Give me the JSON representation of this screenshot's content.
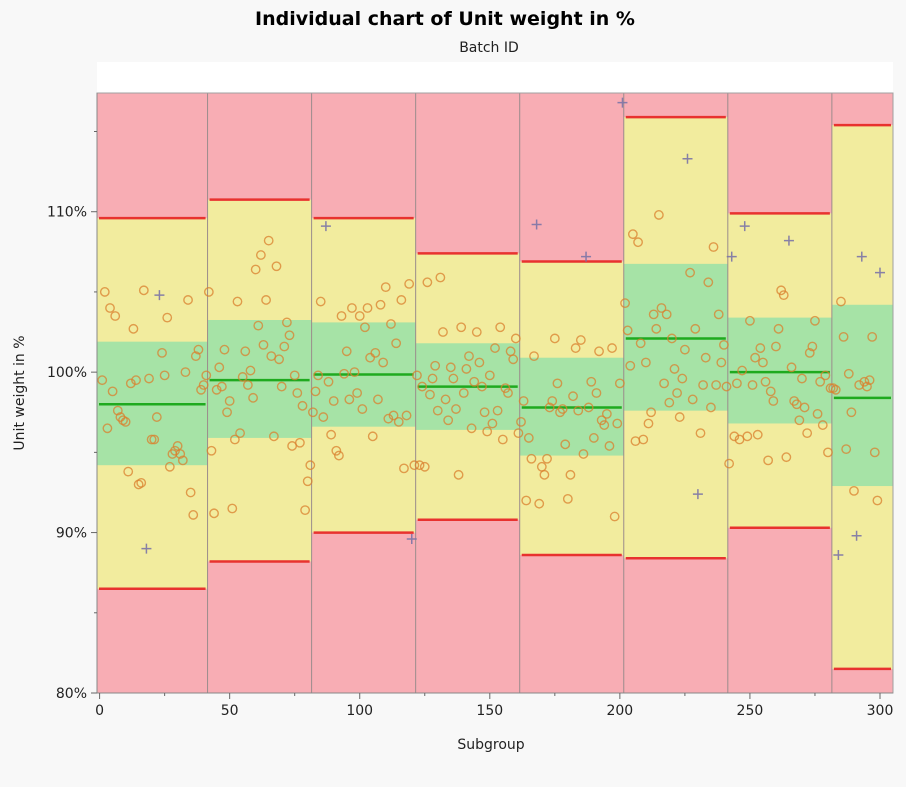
{
  "chart_data": {
    "type": "scatter",
    "title": "Individual chart of Unit weight in %",
    "subtitle": "Batch ID",
    "xlabel": "Subgroup",
    "ylabel": "Unit weight in %",
    "xlim": [
      -1,
      305
    ],
    "ylim": [
      80,
      117.4
    ],
    "x_ticks": [
      0,
      50,
      100,
      150,
      200,
      250,
      300
    ],
    "y_ticks": [
      80,
      90,
      100,
      110
    ],
    "y_tick_suffix": "%",
    "grid": false,
    "colors": {
      "out_zone": "#f8adb4",
      "warn_zone": "#f2ec9e",
      "ok_zone": "#a6e3a6",
      "limit_line": "#e8322f",
      "center_line": "#1faa1f",
      "point": "#d9802e",
      "plus_point": "#7b74a6",
      "divider": "#9b8c8c"
    },
    "batches": [
      {
        "start": 0.5,
        "end": 41.5,
        "ucl": 109.6,
        "lcl": 86.5,
        "center": 98.0,
        "zone_hi": 101.9,
        "zone_lo": 94.2
      },
      {
        "start": 41.5,
        "end": 81.5,
        "ucl": 110.75,
        "lcl": 88.2,
        "center": 99.5,
        "zone_hi": 103.25,
        "zone_lo": 95.9
      },
      {
        "start": 81.5,
        "end": 121.5,
        "ucl": 109.6,
        "lcl": 90.0,
        "center": 99.85,
        "zone_hi": 103.1,
        "zone_lo": 96.6
      },
      {
        "start": 121.5,
        "end": 161.5,
        "ucl": 107.4,
        "lcl": 90.8,
        "center": 99.1,
        "zone_hi": 101.8,
        "zone_lo": 96.4
      },
      {
        "start": 161.5,
        "end": 201.5,
        "ucl": 106.9,
        "lcl": 88.6,
        "center": 97.8,
        "zone_hi": 100.9,
        "zone_lo": 94.8
      },
      {
        "start": 201.5,
        "end": 241.5,
        "ucl": 115.9,
        "lcl": 88.4,
        "center": 102.1,
        "zone_hi": 106.75,
        "zone_lo": 97.6
      },
      {
        "start": 241.5,
        "end": 281.5,
        "ucl": 109.9,
        "lcl": 90.3,
        "center": 100.0,
        "zone_hi": 103.4,
        "zone_lo": 96.8
      },
      {
        "start": 281.5,
        "end": 300.5,
        "ucl": 115.4,
        "lcl": 81.5,
        "center": 98.4,
        "zone_hi": 104.2,
        "zone_lo": 92.9
      }
    ],
    "values": [
      99.5,
      105,
      96.5,
      104,
      98.8,
      103.5,
      97.6,
      97.2,
      97,
      96.9,
      93.8,
      99.3,
      102.7,
      99.5,
      93,
      93.1,
      105.1,
      89,
      99.6,
      95.8,
      95.8,
      97.2,
      104.8,
      101.2,
      99.8,
      103.4,
      94.1,
      94.9,
      95.1,
      95.4,
      94.9,
      94.5,
      100,
      104.5,
      92.5,
      91.1,
      101,
      101.4,
      98.9,
      99.2,
      99.8,
      105,
      95.1,
      91.2,
      98.9,
      100.3,
      99.1,
      101.4,
      97.5,
      98.2,
      91.5,
      95.8,
      104.4,
      96.2,
      99.7,
      101.3,
      99.2,
      100.1,
      98.4,
      106.4,
      102.9,
      107.3,
      101.7,
      104.5,
      108.2,
      101,
      96,
      106.6,
      100.8,
      99.1,
      101.6,
      103.1,
      102.3,
      95.4,
      99.8,
      98.7,
      95.6,
      97.9,
      91.4,
      93.2,
      94.2,
      97.5,
      98.8,
      99.8,
      104.4,
      97.2,
      109.1,
      99.4,
      96.1,
      98.2,
      95.1,
      94.8,
      103.5,
      99.9,
      101.3,
      98.3,
      104,
      100,
      98.7,
      103.5,
      97.7,
      102.8,
      104,
      100.9,
      96,
      101.2,
      98.3,
      104.2,
      100.6,
      105.3,
      97.1,
      103,
      97.3,
      101.8,
      96.9,
      104.5,
      94,
      97.3,
      105.5,
      89.6,
      94.2,
      99.8,
      94.2,
      99.1,
      94.1,
      105.6,
      98.6,
      99.6,
      100.4,
      97.6,
      105.9,
      102.5,
      98.3,
      97,
      100.3,
      99.6,
      97.7,
      93.6,
      102.8,
      98.7,
      100.2,
      101,
      96.5,
      99.4,
      102.5,
      100.6,
      99.1,
      97.5,
      96.3,
      99.8,
      96.8,
      101.5,
      97.6,
      102.8,
      95.8,
      99,
      98.7,
      101.3,
      100.8,
      102.1,
      96.2,
      96.9,
      98.2,
      92,
      95.9,
      94.6,
      101,
      109.2,
      91.8,
      94.1,
      93.6,
      94.6,
      97.8,
      98.2,
      102.1,
      99.3,
      97.5,
      97.7,
      95.5,
      92.1,
      93.6,
      98.5,
      101.5,
      97.6,
      102,
      94.9,
      107.2,
      97.8,
      99.4,
      95.9,
      98.7,
      101.3,
      97,
      96.7,
      97.4,
      95.4,
      101.5,
      91,
      96.8,
      99.3,
      116.8,
      104.3,
      102.6,
      100.4,
      108.6,
      95.7,
      108.1,
      101.8,
      95.8,
      100.6,
      96.8,
      97.5,
      103.6,
      102.7,
      109.8,
      104,
      99.3,
      103.6,
      98.1,
      102.1,
      100.2,
      98.7,
      97.2,
      99.6,
      101.4,
      113.3,
      106.2,
      98.3,
      102.7,
      92.4,
      96.2,
      99.2,
      100.9,
      105.6,
      97.8,
      107.8,
      99.2,
      103.6,
      100.6,
      101.7,
      99.1,
      94.3,
      107.2,
      96,
      99.3,
      95.8,
      100.1,
      109.1,
      96,
      103.2,
      99.2,
      100.9,
      96.1,
      101.5,
      100.6,
      99.4,
      94.5,
      98.8,
      98.2,
      101.6,
      102.7,
      105.1,
      104.8,
      94.7,
      108.2,
      100.3,
      98.2,
      98,
      97,
      99.6,
      97.8,
      96.2,
      101.2,
      101.6,
      103.2,
      97.4,
      99.4,
      96.7,
      99.8,
      95,
      99,
      99,
      98.9,
      88.6,
      104.4,
      102.2,
      95.2,
      99.9,
      97.5,
      92.6,
      89.8,
      99.2,
      107.2,
      99.4,
      99.1,
      99.5,
      102.2,
      95,
      92,
      106.2
    ],
    "plus_marker_subgroups": [
      18,
      23,
      87,
      120,
      168,
      187,
      201,
      226,
      230,
      243,
      248,
      265,
      284,
      291,
      293,
      300
    ]
  }
}
